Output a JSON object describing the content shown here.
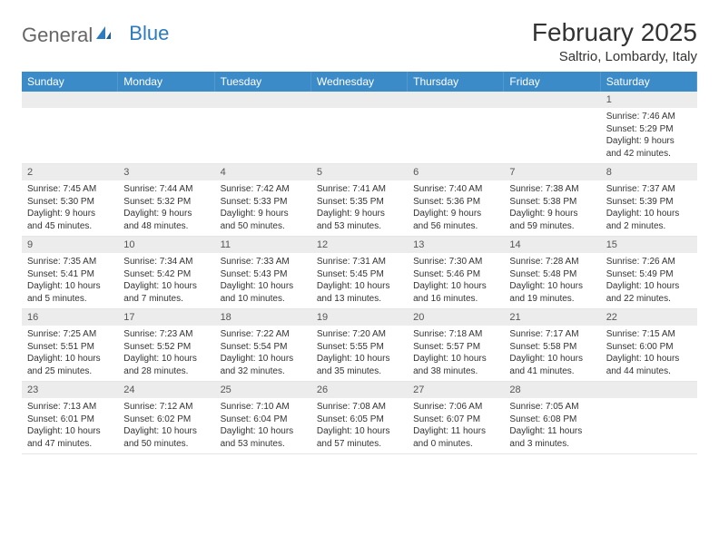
{
  "logo": {
    "text1": "General",
    "text2": "Blue"
  },
  "title": "February 2025",
  "location": "Saltrio, Lombardy, Italy",
  "colors": {
    "header_bg": "#3b8bc9",
    "header_text": "#ffffff",
    "daynum_bg": "#ececec",
    "text": "#333333",
    "page_bg": "#ffffff",
    "logo_gray": "#666666",
    "logo_blue": "#2b7bbf"
  },
  "typography": {
    "title_fontsize": 28,
    "location_fontsize": 15,
    "dayheader_fontsize": 12,
    "cell_fontsize": 10
  },
  "day_names": [
    "Sunday",
    "Monday",
    "Tuesday",
    "Wednesday",
    "Thursday",
    "Friday",
    "Saturday"
  ],
  "weeks": [
    [
      {
        "day": "",
        "sunrise": "",
        "sunset": "",
        "daylight": ""
      },
      {
        "day": "",
        "sunrise": "",
        "sunset": "",
        "daylight": ""
      },
      {
        "day": "",
        "sunrise": "",
        "sunset": "",
        "daylight": ""
      },
      {
        "day": "",
        "sunrise": "",
        "sunset": "",
        "daylight": ""
      },
      {
        "day": "",
        "sunrise": "",
        "sunset": "",
        "daylight": ""
      },
      {
        "day": "",
        "sunrise": "",
        "sunset": "",
        "daylight": ""
      },
      {
        "day": "1",
        "sunrise": "Sunrise: 7:46 AM",
        "sunset": "Sunset: 5:29 PM",
        "daylight": "Daylight: 9 hours and 42 minutes."
      }
    ],
    [
      {
        "day": "2",
        "sunrise": "Sunrise: 7:45 AM",
        "sunset": "Sunset: 5:30 PM",
        "daylight": "Daylight: 9 hours and 45 minutes."
      },
      {
        "day": "3",
        "sunrise": "Sunrise: 7:44 AM",
        "sunset": "Sunset: 5:32 PM",
        "daylight": "Daylight: 9 hours and 48 minutes."
      },
      {
        "day": "4",
        "sunrise": "Sunrise: 7:42 AM",
        "sunset": "Sunset: 5:33 PM",
        "daylight": "Daylight: 9 hours and 50 minutes."
      },
      {
        "day": "5",
        "sunrise": "Sunrise: 7:41 AM",
        "sunset": "Sunset: 5:35 PM",
        "daylight": "Daylight: 9 hours and 53 minutes."
      },
      {
        "day": "6",
        "sunrise": "Sunrise: 7:40 AM",
        "sunset": "Sunset: 5:36 PM",
        "daylight": "Daylight: 9 hours and 56 minutes."
      },
      {
        "day": "7",
        "sunrise": "Sunrise: 7:38 AM",
        "sunset": "Sunset: 5:38 PM",
        "daylight": "Daylight: 9 hours and 59 minutes."
      },
      {
        "day": "8",
        "sunrise": "Sunrise: 7:37 AM",
        "sunset": "Sunset: 5:39 PM",
        "daylight": "Daylight: 10 hours and 2 minutes."
      }
    ],
    [
      {
        "day": "9",
        "sunrise": "Sunrise: 7:35 AM",
        "sunset": "Sunset: 5:41 PM",
        "daylight": "Daylight: 10 hours and 5 minutes."
      },
      {
        "day": "10",
        "sunrise": "Sunrise: 7:34 AM",
        "sunset": "Sunset: 5:42 PM",
        "daylight": "Daylight: 10 hours and 7 minutes."
      },
      {
        "day": "11",
        "sunrise": "Sunrise: 7:33 AM",
        "sunset": "Sunset: 5:43 PM",
        "daylight": "Daylight: 10 hours and 10 minutes."
      },
      {
        "day": "12",
        "sunrise": "Sunrise: 7:31 AM",
        "sunset": "Sunset: 5:45 PM",
        "daylight": "Daylight: 10 hours and 13 minutes."
      },
      {
        "day": "13",
        "sunrise": "Sunrise: 7:30 AM",
        "sunset": "Sunset: 5:46 PM",
        "daylight": "Daylight: 10 hours and 16 minutes."
      },
      {
        "day": "14",
        "sunrise": "Sunrise: 7:28 AM",
        "sunset": "Sunset: 5:48 PM",
        "daylight": "Daylight: 10 hours and 19 minutes."
      },
      {
        "day": "15",
        "sunrise": "Sunrise: 7:26 AM",
        "sunset": "Sunset: 5:49 PM",
        "daylight": "Daylight: 10 hours and 22 minutes."
      }
    ],
    [
      {
        "day": "16",
        "sunrise": "Sunrise: 7:25 AM",
        "sunset": "Sunset: 5:51 PM",
        "daylight": "Daylight: 10 hours and 25 minutes."
      },
      {
        "day": "17",
        "sunrise": "Sunrise: 7:23 AM",
        "sunset": "Sunset: 5:52 PM",
        "daylight": "Daylight: 10 hours and 28 minutes."
      },
      {
        "day": "18",
        "sunrise": "Sunrise: 7:22 AM",
        "sunset": "Sunset: 5:54 PM",
        "daylight": "Daylight: 10 hours and 32 minutes."
      },
      {
        "day": "19",
        "sunrise": "Sunrise: 7:20 AM",
        "sunset": "Sunset: 5:55 PM",
        "daylight": "Daylight: 10 hours and 35 minutes."
      },
      {
        "day": "20",
        "sunrise": "Sunrise: 7:18 AM",
        "sunset": "Sunset: 5:57 PM",
        "daylight": "Daylight: 10 hours and 38 minutes."
      },
      {
        "day": "21",
        "sunrise": "Sunrise: 7:17 AM",
        "sunset": "Sunset: 5:58 PM",
        "daylight": "Daylight: 10 hours and 41 minutes."
      },
      {
        "day": "22",
        "sunrise": "Sunrise: 7:15 AM",
        "sunset": "Sunset: 6:00 PM",
        "daylight": "Daylight: 10 hours and 44 minutes."
      }
    ],
    [
      {
        "day": "23",
        "sunrise": "Sunrise: 7:13 AM",
        "sunset": "Sunset: 6:01 PM",
        "daylight": "Daylight: 10 hours and 47 minutes."
      },
      {
        "day": "24",
        "sunrise": "Sunrise: 7:12 AM",
        "sunset": "Sunset: 6:02 PM",
        "daylight": "Daylight: 10 hours and 50 minutes."
      },
      {
        "day": "25",
        "sunrise": "Sunrise: 7:10 AM",
        "sunset": "Sunset: 6:04 PM",
        "daylight": "Daylight: 10 hours and 53 minutes."
      },
      {
        "day": "26",
        "sunrise": "Sunrise: 7:08 AM",
        "sunset": "Sunset: 6:05 PM",
        "daylight": "Daylight: 10 hours and 57 minutes."
      },
      {
        "day": "27",
        "sunrise": "Sunrise: 7:06 AM",
        "sunset": "Sunset: 6:07 PM",
        "daylight": "Daylight: 11 hours and 0 minutes."
      },
      {
        "day": "28",
        "sunrise": "Sunrise: 7:05 AM",
        "sunset": "Sunset: 6:08 PM",
        "daylight": "Daylight: 11 hours and 3 minutes."
      },
      {
        "day": "",
        "sunrise": "",
        "sunset": "",
        "daylight": ""
      }
    ]
  ]
}
